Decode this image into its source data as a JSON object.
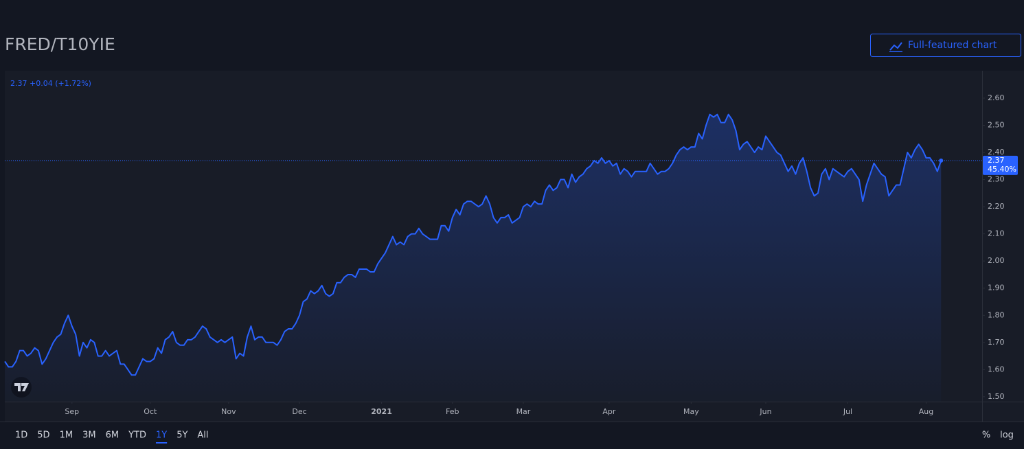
{
  "header": {
    "title": "FRED/T10YIE",
    "button": "Full-featured chart"
  },
  "chart_data": {
    "type": "line",
    "status_line": "2.37 +0.04 (+1.72%)",
    "series": [
      {
        "color": "#2962ff",
        "values": [
          1.63,
          1.61,
          1.61,
          1.63,
          1.67,
          1.67,
          1.65,
          1.66,
          1.68,
          1.67,
          1.62,
          1.64,
          1.67,
          1.7,
          1.72,
          1.73,
          1.77,
          1.8,
          1.76,
          1.73,
          1.65,
          1.7,
          1.68,
          1.71,
          1.7,
          1.65,
          1.65,
          1.67,
          1.65,
          1.66,
          1.67,
          1.62,
          1.62,
          1.6,
          1.58,
          1.58,
          1.61,
          1.64,
          1.63,
          1.63,
          1.64,
          1.68,
          1.66,
          1.71,
          1.72,
          1.74,
          1.7,
          1.69,
          1.69,
          1.71,
          1.71,
          1.72,
          1.74,
          1.76,
          1.75,
          1.72,
          1.71,
          1.7,
          1.71,
          1.7,
          1.71,
          1.72,
          1.64,
          1.66,
          1.65,
          1.72,
          1.76,
          1.71,
          1.72,
          1.72,
          1.7,
          1.7,
          1.7,
          1.69,
          1.71,
          1.74,
          1.75,
          1.75,
          1.77,
          1.8,
          1.85,
          1.86,
          1.89,
          1.88,
          1.89,
          1.91,
          1.88,
          1.87,
          1.88,
          1.92,
          1.92,
          1.94,
          1.95,
          1.95,
          1.94,
          1.97,
          1.97,
          1.97,
          1.96,
          1.96,
          1.99,
          2.01,
          2.03,
          2.06,
          2.09,
          2.06,
          2.07,
          2.06,
          2.09,
          2.1,
          2.1,
          2.12,
          2.1,
          2.09,
          2.08,
          2.08,
          2.08,
          2.13,
          2.13,
          2.11,
          2.16,
          2.19,
          2.17,
          2.21,
          2.22,
          2.22,
          2.21,
          2.2,
          2.21,
          2.24,
          2.21,
          2.16,
          2.14,
          2.16,
          2.16,
          2.17,
          2.14,
          2.15,
          2.16,
          2.2,
          2.21,
          2.2,
          2.22,
          2.21,
          2.21,
          2.26,
          2.28,
          2.26,
          2.27,
          2.3,
          2.3,
          2.27,
          2.32,
          2.29,
          2.31,
          2.32,
          2.34,
          2.35,
          2.37,
          2.36,
          2.38,
          2.36,
          2.37,
          2.35,
          2.36,
          2.32,
          2.34,
          2.33,
          2.31,
          2.33,
          2.33,
          2.33,
          2.33,
          2.36,
          2.34,
          2.32,
          2.33,
          2.33,
          2.34,
          2.36,
          2.39,
          2.41,
          2.42,
          2.41,
          2.42,
          2.42,
          2.47,
          2.45,
          2.5,
          2.54,
          2.53,
          2.54,
          2.51,
          2.51,
          2.54,
          2.52,
          2.48,
          2.41,
          2.43,
          2.44,
          2.42,
          2.4,
          2.42,
          2.41,
          2.46,
          2.44,
          2.42,
          2.4,
          2.39,
          2.36,
          2.33,
          2.35,
          2.32,
          2.36,
          2.38,
          2.33,
          2.27,
          2.24,
          2.25,
          2.32,
          2.34,
          2.3,
          2.34,
          2.33,
          2.32,
          2.31,
          2.33,
          2.34,
          2.32,
          2.3,
          2.22,
          2.28,
          2.32,
          2.36,
          2.34,
          2.32,
          2.31,
          2.24,
          2.26,
          2.28,
          2.28,
          2.34,
          2.4,
          2.38,
          2.41,
          2.43,
          2.41,
          2.38,
          2.38,
          2.36,
          2.33,
          2.37
        ]
      }
    ],
    "change_label": "45.40%",
    "xlim": [
      0,
      262
    ],
    "xticks": [
      {
        "value": 18,
        "label": "Sep"
      },
      {
        "value": 39,
        "label": "Oct"
      },
      {
        "value": 60,
        "label": "Nov"
      },
      {
        "value": 79,
        "label": "Dec"
      },
      {
        "value": 101,
        "label": "2021"
      },
      {
        "value": 120,
        "label": "Feb"
      },
      {
        "value": 139,
        "label": "Mar"
      },
      {
        "value": 162,
        "label": "Apr"
      },
      {
        "value": 184,
        "label": "May"
      },
      {
        "value": 204,
        "label": "Jun"
      },
      {
        "value": 226,
        "label": "Jul"
      },
      {
        "value": 247,
        "label": "Aug"
      }
    ],
    "ylim": [
      1.482,
      2.701
    ],
    "yticks": [
      {
        "value": 1.5,
        "label": "1.50"
      },
      {
        "value": 1.6,
        "label": "1.60"
      },
      {
        "value": 1.7,
        "label": "1.70"
      },
      {
        "value": 1.8,
        "label": "1.80"
      },
      {
        "value": 1.9,
        "label": "1.90"
      },
      {
        "value": 2.0,
        "label": "2.00"
      },
      {
        "value": 2.1,
        "label": "2.10"
      },
      {
        "value": 2.2,
        "label": "2.20"
      },
      {
        "value": 2.3,
        "label": "2.30"
      },
      {
        "value": 2.4,
        "label": "2.40"
      },
      {
        "value": 2.5,
        "label": "2.50"
      },
      {
        "value": 2.6,
        "label": "2.60"
      }
    ],
    "grid": false
  },
  "range_buttons": [
    "1D",
    "5D",
    "1M",
    "3M",
    "6M",
    "YTD",
    "1Y",
    "5Y",
    "All"
  ],
  "active_range": 6,
  "scale_buttons": [
    "%",
    "log"
  ]
}
